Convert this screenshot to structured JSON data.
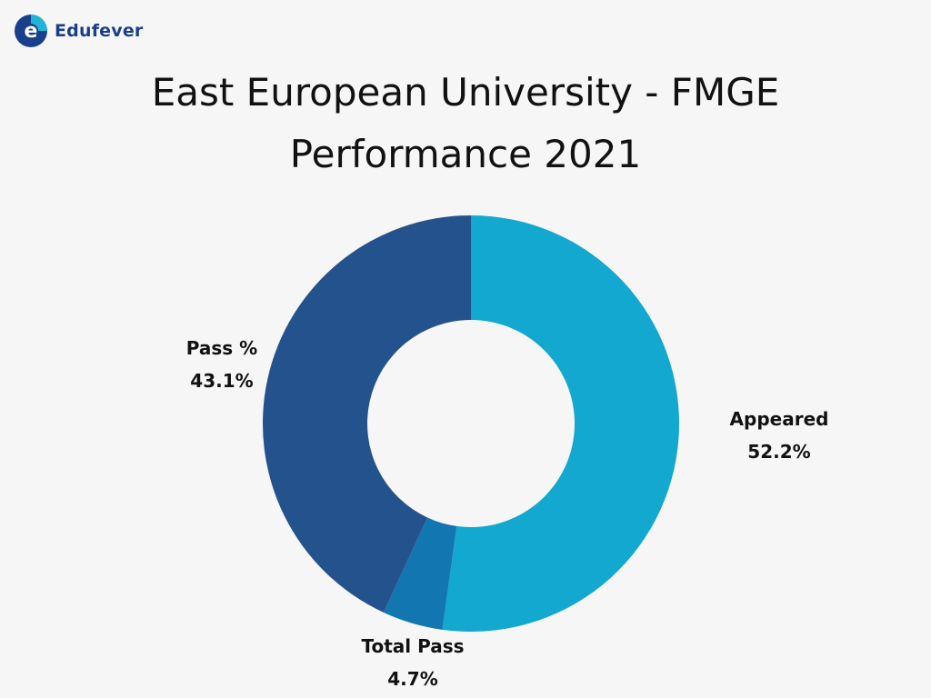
{
  "brand": {
    "name": "Edufever",
    "logo_letter": "e",
    "color": "#1a3f8a",
    "accent": "#21b4d8"
  },
  "chart_data": {
    "type": "pie",
    "donut": true,
    "title_lines": [
      "East European University - FMGE",
      "Performance 2021"
    ],
    "slices": [
      {
        "label": "Appeared",
        "value": 52.2,
        "value_label": "52.2%",
        "color": "#13a8cf"
      },
      {
        "label": "Total Pass",
        "value": 4.7,
        "value_label": "4.7%",
        "color": "#1276b0"
      },
      {
        "label": "Pass %",
        "value": 43.1,
        "value_label": "43.1%",
        "color": "#24528c"
      }
    ],
    "legend": "none"
  }
}
